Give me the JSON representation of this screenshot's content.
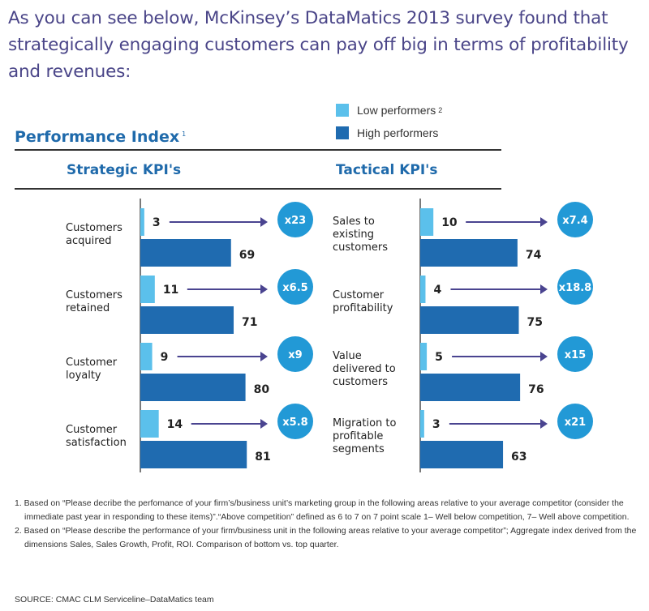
{
  "intro_text": "As you can see below, McKinsey’s DataMatics 2013 survey found that strategically engaging customers can pay off big in terms of profitability and revenues:",
  "colors": {
    "low": "#5bc0eb",
    "high": "#1f6bb0",
    "arrow": "#4a4490",
    "circle": "#2299d6",
    "heading": "#1f6aab"
  },
  "chart_data": {
    "type": "bar",
    "title": "Performance Index",
    "title_footnote": "1",
    "legend": [
      {
        "name": "Low performers",
        "footnote": "2",
        "color": "#5bc0eb"
      },
      {
        "name": "High performers",
        "footnote": "",
        "color": "#1f6bb0"
      }
    ],
    "legend_position": "top-right",
    "orientation": "horizontal",
    "xlim": [
      0,
      100
    ],
    "panels": [
      {
        "title": "Strategic KPI's",
        "categories": [
          "Customers acquired",
          "Customers retained",
          "Customer loyalty",
          "Customer satisfaction"
        ],
        "category_lines": [
          [
            "Customers",
            "acquired"
          ],
          [
            "Customers",
            "retained"
          ],
          [
            "Customer",
            "loyalty"
          ],
          [
            "Customer",
            "satisfaction"
          ]
        ],
        "series": [
          {
            "name": "Low performers",
            "values": [
              3,
              11,
              9,
              14
            ]
          },
          {
            "name": "High performers",
            "values": [
              69,
              71,
              80,
              81
            ]
          }
        ],
        "multipliers": [
          "x23",
          "x6.5",
          "x9",
          "x5.8"
        ]
      },
      {
        "title": "Tactical KPI's",
        "categories": [
          "Sales to existing customers",
          "Customer profitability",
          "Value delivered to customers",
          "Migration to profitable segments"
        ],
        "category_lines": [
          [
            "Sales to",
            "existing",
            "customers"
          ],
          [
            "Customer",
            "profitability"
          ],
          [
            "Value",
            "delivered to",
            "customers"
          ],
          [
            "Migration to",
            "profitable",
            "segments"
          ]
        ],
        "series": [
          {
            "name": "Low performers",
            "values": [
              10,
              4,
              5,
              3
            ]
          },
          {
            "name": "High performers",
            "values": [
              74,
              75,
              76,
              63
            ]
          }
        ],
        "multipliers": [
          "x7.4",
          "x18.8",
          "x15",
          "x21"
        ]
      }
    ]
  },
  "footnotes": [
    "1. Based on “Please decribe the perfomance of your firm’s/business unit’s marketing group in the following areas relative to your average competitor (consider the immediate past year in responding to these items)”.“Above competition” defined as 6 to 7 on 7 point scale 1– Well below competition, 7– Well above competition.",
    "2. Based on “Please describe the performance of your firm/business unit in the following areas relative to your average competitor”; Aggregate index derived from the dimensions Sales, Sales Growth, Profit, ROI. Comparison of bottom vs. top quarter."
  ],
  "source": "SOURCE: CMAC CLM Serviceline–DataMatics team"
}
